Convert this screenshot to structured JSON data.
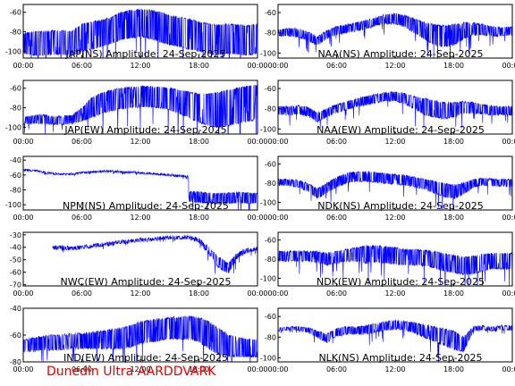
{
  "footer": "Dunedin Ultra AARDDVARK",
  "style": {
    "trace_color": "#0000ff",
    "axis_color": "#000000",
    "footer_color": "#e00000",
    "background": "#ffffff"
  },
  "chart_data": [
    {
      "type": "line",
      "title": "JAP(NS) Amplitude: 24-Sep-2025",
      "xlim": [
        "00:00",
        "24:00"
      ],
      "x_ticks": [
        "00:00",
        "06:00",
        "12:00",
        "18:00",
        "00:00"
      ],
      "ylim": [
        -107,
        -52
      ],
      "y_ticks": [
        -60,
        -80,
        -100
      ],
      "series": [
        {
          "x": [
            0,
            1,
            2,
            3,
            4,
            5,
            6,
            7,
            8,
            9,
            10,
            11,
            12,
            13,
            14,
            15,
            16,
            17,
            18,
            19,
            20,
            21,
            22,
            23,
            24
          ],
          "upper": [
            -82,
            -80,
            -80,
            -79,
            -79,
            -80,
            -72,
            -70,
            -68,
            -65,
            -60,
            -58,
            -57,
            -58,
            -60,
            -63,
            -65,
            -67,
            -70,
            -72,
            -73,
            -72,
            -73,
            -74,
            -72
          ],
          "lower": [
            -102,
            -104,
            -104,
            -103,
            -103,
            -104,
            -100,
            -98,
            -95,
            -92,
            -88,
            -86,
            -85,
            -87,
            -90,
            -93,
            -95,
            -98,
            -100,
            -102,
            -103,
            -102,
            -103,
            -104,
            -102
          ]
        }
      ]
    },
    {
      "type": "line",
      "title": "NAA(NS) Amplitude: 24-Sep-2025",
      "xlim": [
        "00:00",
        "24:00"
      ],
      "x_ticks": [
        "00:00",
        "06:00",
        "12:00",
        "18:00",
        "00:00"
      ],
      "ylim": [
        -105,
        -52
      ],
      "y_ticks": [
        -60,
        -80,
        -100
      ],
      "series": [
        {
          "x": [
            0,
            1,
            2,
            3,
            4,
            5,
            6,
            7,
            8,
            9,
            10,
            11,
            12,
            13,
            14,
            15,
            16,
            17,
            18,
            19,
            20,
            21,
            22,
            23,
            24
          ],
          "upper": [
            -77,
            -76,
            -76,
            -79,
            -84,
            -78,
            -74,
            -72,
            -70,
            -68,
            -65,
            -62,
            -61,
            -63,
            -66,
            -70,
            -72,
            -73,
            -72,
            -70,
            -70,
            -72,
            -74,
            -75,
            -74
          ],
          "lower": [
            -83,
            -83,
            -84,
            -87,
            -92,
            -86,
            -82,
            -80,
            -78,
            -76,
            -73,
            -71,
            -71,
            -74,
            -80,
            -86,
            -92,
            -94,
            -92,
            -86,
            -82,
            -82,
            -83,
            -83,
            -82
          ]
        }
      ]
    },
    {
      "type": "line",
      "title": "JAP(EW) Amplitude: 24-Sep-2025",
      "xlim": [
        "00:00",
        "24:00"
      ],
      "x_ticks": [
        "00:00",
        "06:00",
        "12:00",
        "18:00",
        "00:00"
      ],
      "ylim": [
        -107,
        -52
      ],
      "y_ticks": [
        -60,
        -80,
        -100
      ],
      "series": [
        {
          "x": [
            0,
            1,
            2,
            3,
            4,
            5,
            6,
            7,
            8,
            9,
            10,
            11,
            12,
            13,
            14,
            15,
            16,
            17,
            18,
            19,
            20,
            21,
            22,
            23,
            24
          ],
          "upper": [
            -90,
            -88,
            -87,
            -89,
            -89,
            -88,
            -80,
            -70,
            -65,
            -62,
            -60,
            -59,
            -58,
            -58,
            -59,
            -60,
            -62,
            -64,
            -66,
            -66,
            -64,
            -62,
            -60,
            -58,
            -57
          ],
          "lower": [
            -97,
            -96,
            -96,
            -97,
            -97,
            -96,
            -94,
            -90,
            -86,
            -83,
            -81,
            -80,
            -79,
            -79,
            -80,
            -82,
            -86,
            -90,
            -95,
            -98,
            -100,
            -98,
            -96,
            -94,
            -92
          ]
        }
      ]
    },
    {
      "type": "line",
      "title": "NAA(EW) Amplitude: 24-Sep-2025",
      "xlim": [
        "00:00",
        "24:00"
      ],
      "x_ticks": [
        "00:00",
        "06:00",
        "12:00",
        "18:00",
        "00:00"
      ],
      "ylim": [
        -105,
        -52
      ],
      "y_ticks": [
        -60,
        -80,
        -100
      ],
      "series": [
        {
          "x": [
            0,
            1,
            2,
            3,
            4,
            5,
            6,
            7,
            8,
            9,
            10,
            11,
            12,
            13,
            14,
            15,
            16,
            17,
            18,
            19,
            20,
            21,
            22,
            23,
            24
          ],
          "upper": [
            -78,
            -78,
            -77,
            -78,
            -84,
            -80,
            -76,
            -73,
            -70,
            -68,
            -66,
            -64,
            -63,
            -65,
            -68,
            -70,
            -72,
            -74,
            -74,
            -73,
            -74,
            -76,
            -77,
            -78,
            -78
          ],
          "lower": [
            -86,
            -86,
            -85,
            -87,
            -93,
            -88,
            -84,
            -81,
            -78,
            -76,
            -74,
            -72,
            -72,
            -75,
            -80,
            -86,
            -88,
            -90,
            -88,
            -84,
            -84,
            -85,
            -86,
            -86,
            -86
          ]
        }
      ]
    },
    {
      "type": "line",
      "title": "NPM(NS) Amplitude: 24-Sep-2025",
      "xlim": [
        "00:00",
        "24:00"
      ],
      "x_ticks": [
        "00:00",
        "06:00",
        "12:00",
        "18:00",
        "00:00"
      ],
      "ylim": [
        -107,
        -35
      ],
      "y_ticks": [
        -40,
        -60,
        -80,
        -100
      ],
      "series": [
        {
          "x": [
            0,
            1,
            2,
            3,
            4,
            5,
            6,
            7,
            8,
            9,
            10,
            11,
            12,
            13,
            14,
            15,
            16,
            16.9,
            17,
            18,
            19,
            20,
            21,
            22,
            23,
            24
          ],
          "upper": [
            -52,
            -53,
            -55,
            -57,
            -58,
            -58,
            -56,
            -55,
            -54,
            -54,
            -55,
            -55,
            -56,
            -57,
            -58,
            -59,
            -60,
            -61,
            -82,
            -83,
            -84,
            -85,
            -84,
            -83,
            -84,
            -85
          ],
          "lower": [
            -54,
            -55,
            -57,
            -59,
            -60,
            -60,
            -58,
            -57,
            -56,
            -56,
            -57,
            -57,
            -58,
            -59,
            -60,
            -61,
            -62,
            -63,
            -96,
            -97,
            -98,
            -99,
            -98,
            -97,
            -98,
            -98
          ]
        }
      ]
    },
    {
      "type": "line",
      "title": "NDK(NS) Amplitude: 24-Sep-2025",
      "xlim": [
        "00:00",
        "24:00"
      ],
      "x_ticks": [
        "00:00",
        "06:00",
        "12:00",
        "18:00",
        "00:00"
      ],
      "ylim": [
        -108,
        -52
      ],
      "y_ticks": [
        -60,
        -80,
        -100
      ],
      "series": [
        {
          "x": [
            0,
            1,
            2,
            3,
            4,
            5,
            6,
            7,
            8,
            9,
            10,
            11,
            12,
            13,
            14,
            15,
            16,
            17,
            18,
            19,
            20,
            21,
            22,
            23,
            24
          ],
          "upper": [
            -76,
            -76,
            -77,
            -80,
            -86,
            -80,
            -74,
            -70,
            -68,
            -68,
            -69,
            -70,
            -71,
            -72,
            -74,
            -76,
            -78,
            -80,
            -82,
            -80,
            -76,
            -75,
            -76,
            -76,
            -76
          ],
          "lower": [
            -82,
            -82,
            -84,
            -88,
            -96,
            -90,
            -84,
            -80,
            -78,
            -78,
            -79,
            -80,
            -81,
            -82,
            -84,
            -86,
            -90,
            -94,
            -96,
            -92,
            -84,
            -82,
            -83,
            -83,
            -83
          ]
        }
      ]
    },
    {
      "type": "line",
      "title": "NWC(EW) Amplitude: 24-Sep-2025",
      "xlim": [
        "00:00",
        "24:00"
      ],
      "x_ticks": [
        "00:00",
        "06:00",
        "12:00",
        "18:00",
        "00:00"
      ],
      "ylim": [
        -71,
        -28
      ],
      "y_ticks": [
        -30,
        -40,
        -50,
        -60,
        -70
      ],
      "series": [
        {
          "x": [
            0,
            2.9,
            3,
            4,
            5,
            6,
            7,
            8,
            9,
            10,
            11,
            12,
            13,
            14,
            15,
            16,
            17,
            18,
            19,
            20,
            21,
            22,
            23,
            24
          ],
          "upper": [
            null,
            null,
            -39,
            -39,
            -40,
            -39,
            -38,
            -37,
            -36,
            -35,
            -34,
            -33,
            -33,
            -32,
            -31,
            -31,
            -31,
            -33,
            -40,
            -48,
            -53,
            -44,
            -41,
            -40
          ],
          "lower": [
            null,
            null,
            -41,
            -42,
            -42,
            -41,
            -40,
            -39,
            -38,
            -37,
            -36,
            -35,
            -35,
            -34,
            -33,
            -33,
            -33,
            -36,
            -45,
            -56,
            -61,
            -48,
            -44,
            -42
          ]
        }
      ]
    },
    {
      "type": "line",
      "title": "NDK(EW) Amplitude: 24-Sep-2025",
      "xlim": [
        "00:00",
        "24:00"
      ],
      "x_ticks": [
        "00:00",
        "06:00",
        "12:00",
        "18:00",
        "00:00"
      ],
      "ylim": [
        -108,
        -52
      ],
      "y_ticks": [
        -60,
        -80,
        -100
      ],
      "series": [
        {
          "x": [
            0,
            1,
            2,
            3,
            4,
            5,
            6,
            7,
            8,
            9,
            10,
            11,
            12,
            13,
            14,
            15,
            16,
            17,
            18,
            19,
            20,
            21,
            22,
            23,
            24
          ],
          "upper": [
            -72,
            -72,
            -72,
            -72,
            -72,
            -74,
            -72,
            -70,
            -68,
            -66,
            -66,
            -67,
            -68,
            -70,
            -70,
            -71,
            -72,
            -74,
            -76,
            -78,
            -77,
            -75,
            -74,
            -74,
            -74
          ],
          "lower": [
            -82,
            -82,
            -82,
            -82,
            -84,
            -86,
            -84,
            -82,
            -82,
            -84,
            -83,
            -84,
            -85,
            -86,
            -86,
            -87,
            -89,
            -92,
            -94,
            -96,
            -95,
            -92,
            -90,
            -90,
            -90
          ]
        }
      ]
    },
    {
      "type": "line",
      "title": "IND(EW) Amplitude: 24-Sep-2025",
      "xlim": [
        "00:00",
        "24:00"
      ],
      "x_ticks": [
        "00:00",
        "06:00",
        "12:00",
        "18:00",
        "00:00"
      ],
      "ylim": [
        -80,
        -40
      ],
      "y_ticks": [
        -40,
        -60,
        -80
      ],
      "series": [
        {
          "x": [
            0,
            1,
            2,
            3,
            4,
            5,
            6,
            7,
            8,
            9,
            10,
            11,
            12,
            13,
            14,
            15,
            16,
            17,
            18,
            19,
            20,
            21,
            22,
            23,
            24
          ],
          "upper": [
            -64,
            -62,
            -61,
            -60,
            -60,
            -59,
            -59,
            -58,
            -57,
            -56,
            -55,
            -53,
            -50,
            -49,
            -48,
            -47,
            -47,
            -46,
            -47,
            -50,
            -55,
            -60,
            -62,
            -63,
            -64
          ],
          "lower": [
            -72,
            -72,
            -71,
            -71,
            -71,
            -70,
            -70,
            -70,
            -70,
            -70,
            -70,
            -69,
            -66,
            -65,
            -64,
            -63,
            -63,
            -63,
            -65,
            -70,
            -74,
            -76,
            -76,
            -76,
            -76
          ]
        }
      ]
    },
    {
      "type": "line",
      "title": "NLK(NS) Amplitude: 24-Sep-2025",
      "xlim": [
        "00:00",
        "24:00"
      ],
      "x_ticks": [
        "00:00",
        "06:00",
        "12:00",
        "18:00",
        "00:00"
      ],
      "ylim": [
        -104,
        -52
      ],
      "y_ticks": [
        -60,
        -80,
        -100
      ],
      "series": [
        {
          "x": [
            0,
            1,
            2,
            3,
            4,
            5,
            6,
            7,
            8,
            9,
            10,
            11,
            12,
            13,
            14,
            15,
            16,
            17,
            18,
            19,
            20,
            21,
            22,
            23,
            24
          ],
          "upper": [
            -71,
            -70,
            -70,
            -71,
            -74,
            -77,
            -72,
            -70,
            -70,
            -69,
            -67,
            -65,
            -64,
            -65,
            -66,
            -68,
            -70,
            -72,
            -74,
            -80,
            -70,
            -69,
            -70,
            -69,
            -69
          ],
          "lower": [
            -74,
            -73,
            -73,
            -75,
            -80,
            -85,
            -79,
            -77,
            -77,
            -77,
            -75,
            -73,
            -72,
            -73,
            -76,
            -80,
            -84,
            -88,
            -92,
            -94,
            -74,
            -73,
            -74,
            -73,
            -73
          ]
        }
      ]
    }
  ]
}
